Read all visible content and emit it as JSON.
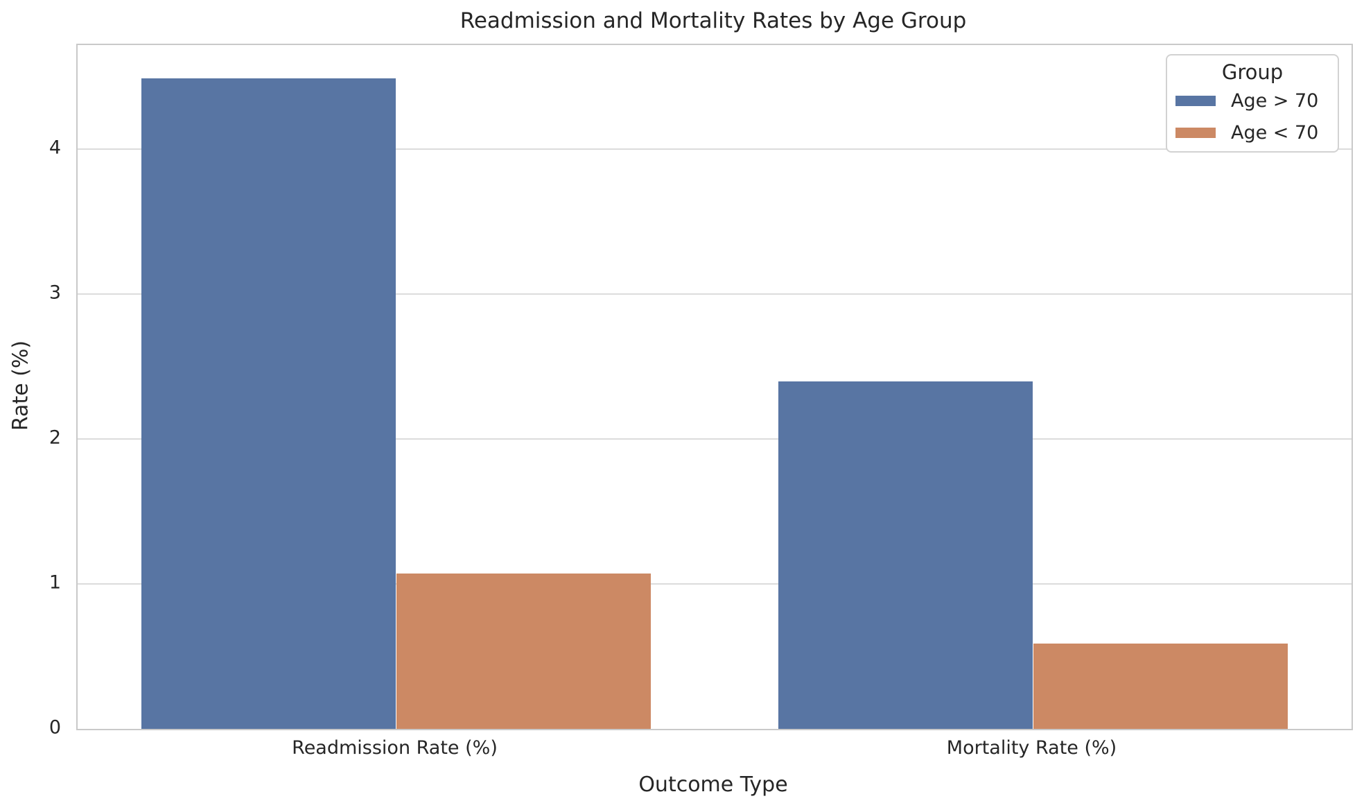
{
  "chart_data": {
    "type": "bar",
    "title": "Readmission and Mortality Rates by Age Group",
    "xlabel": "Outcome Type",
    "ylabel": "Rate (%)",
    "categories": [
      "Readmission Rate (%)",
      "Mortality Rate (%)"
    ],
    "series": [
      {
        "name": "Age > 70",
        "color": "#5875A3",
        "values": [
          4.49,
          2.4
        ]
      },
      {
        "name": "Age < 70",
        "color": "#CC8964",
        "values": [
          1.07,
          0.59
        ]
      }
    ],
    "yticks": [
      0,
      1,
      2,
      3,
      4
    ],
    "ylim": [
      0,
      4.72
    ],
    "xlim_units": 2,
    "group_width": 0.8,
    "grid": true,
    "grid_color": "#dcdcdc",
    "legend": {
      "title": "Group",
      "position": "upper right"
    }
  }
}
